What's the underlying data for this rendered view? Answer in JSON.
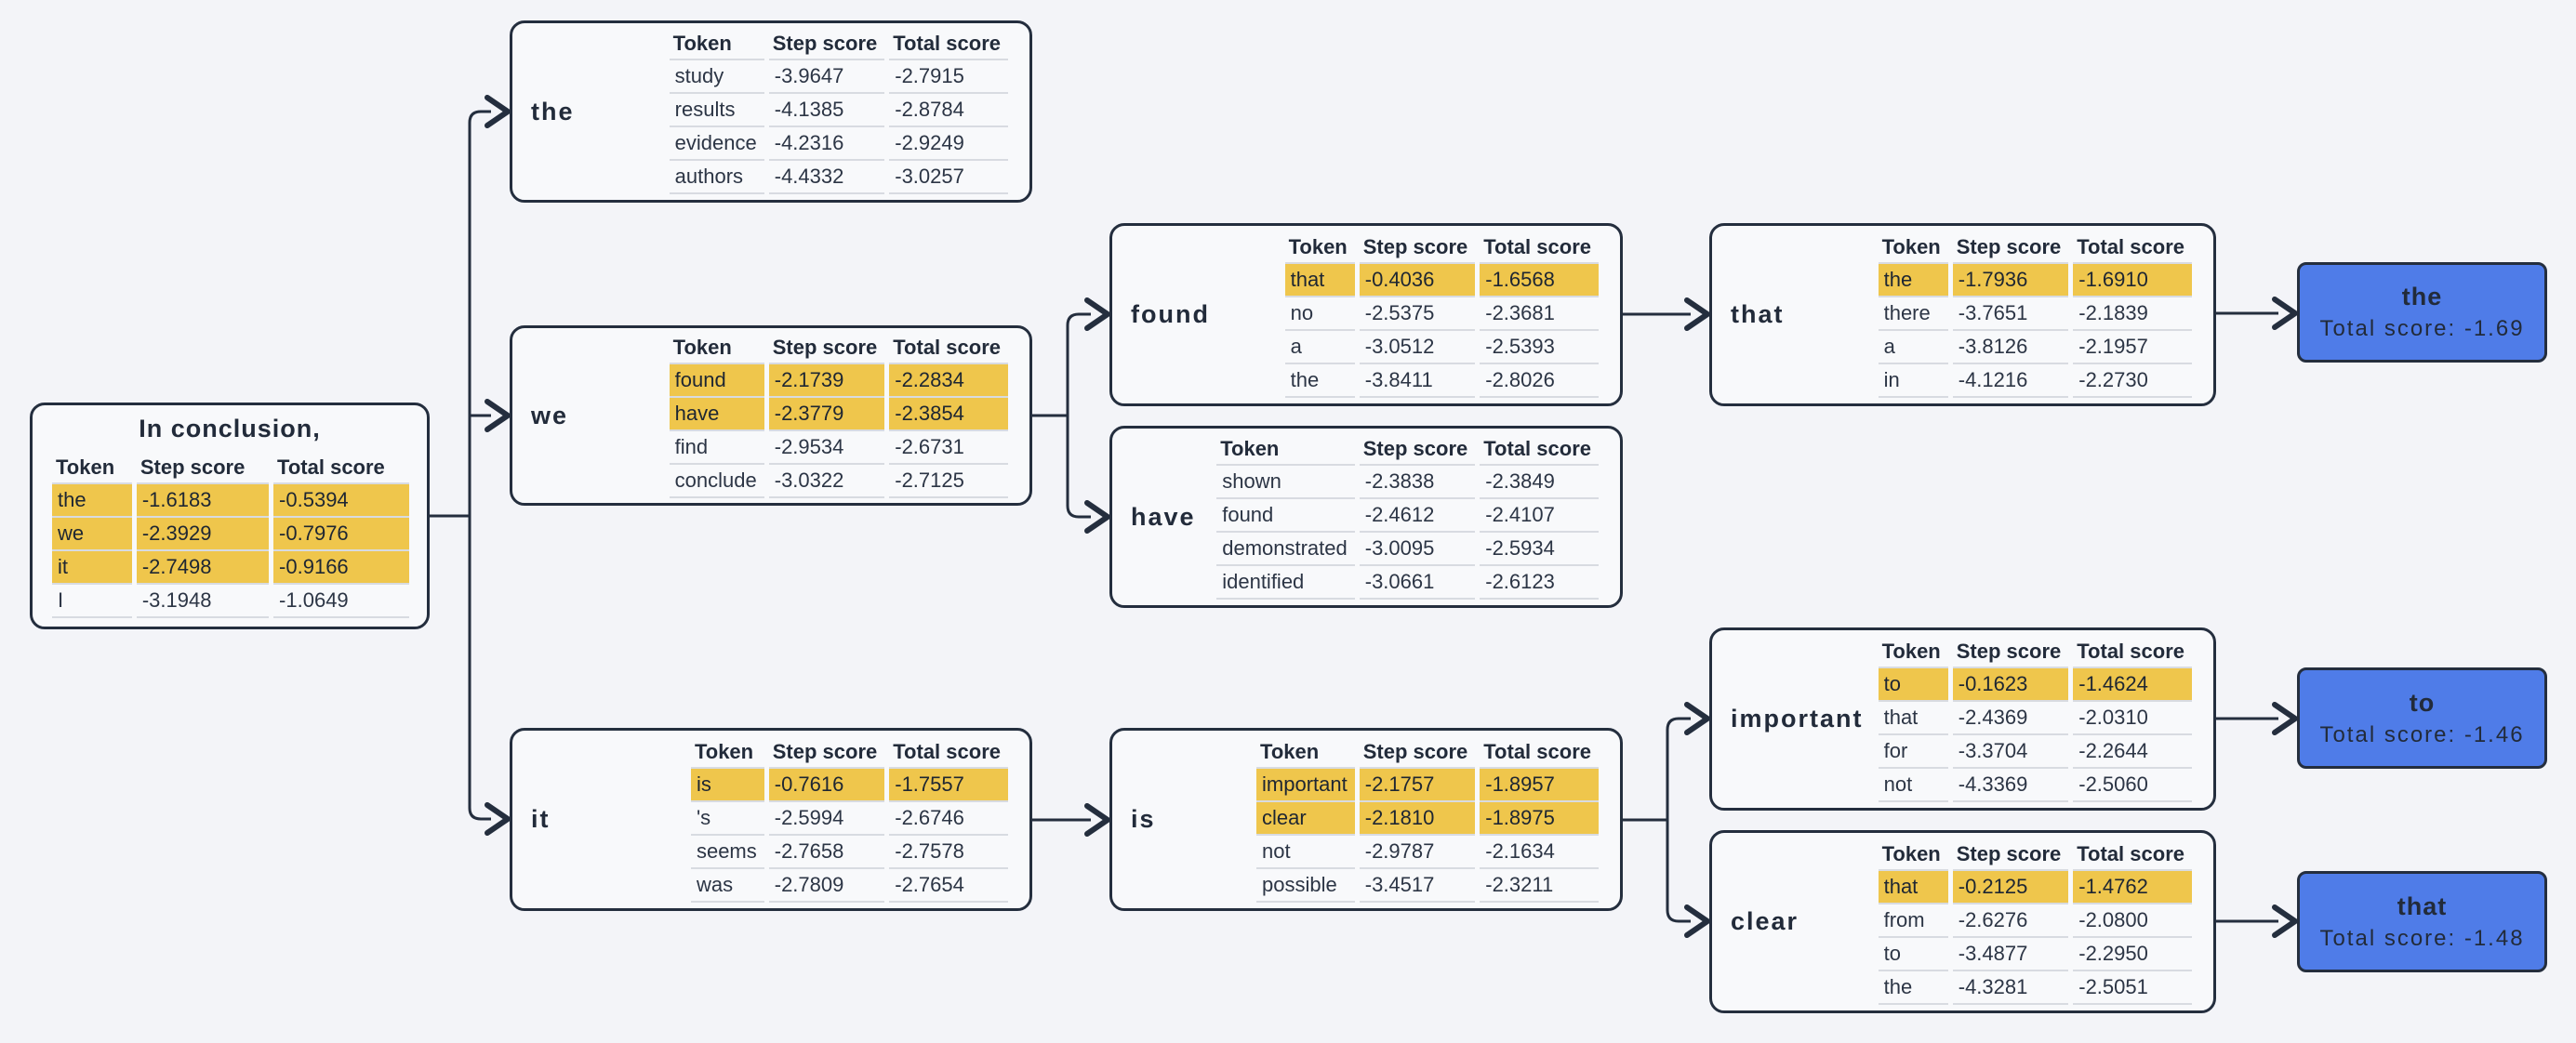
{
  "table_headers": [
    "Token",
    "Step score",
    "Total score"
  ],
  "root": {
    "title": "In conclusion,",
    "rows": [
      {
        "token": "the",
        "step": "-1.6183",
        "total": "-0.5394",
        "highlight": true
      },
      {
        "token": "we",
        "step": "-2.3929",
        "total": "-0.7976",
        "highlight": true
      },
      {
        "token": "it",
        "step": "-2.7498",
        "total": "-0.9166",
        "highlight": true
      },
      {
        "token": "I",
        "step": "-3.1948",
        "total": "-1.0649",
        "highlight": false
      }
    ]
  },
  "nodes": {
    "the": {
      "label": "the",
      "rows": [
        {
          "token": "study",
          "step": "-3.9647",
          "total": "-2.7915",
          "highlight": false
        },
        {
          "token": "results",
          "step": "-4.1385",
          "total": "-2.8784",
          "highlight": false
        },
        {
          "token": "evidence",
          "step": "-4.2316",
          "total": "-2.9249",
          "highlight": false
        },
        {
          "token": "authors",
          "step": "-4.4332",
          "total": "-3.0257",
          "highlight": false
        }
      ]
    },
    "we": {
      "label": "we",
      "rows": [
        {
          "token": "found",
          "step": "-2.1739",
          "total": "-2.2834",
          "highlight": true
        },
        {
          "token": "have",
          "step": "-2.3779",
          "total": "-2.3854",
          "highlight": true
        },
        {
          "token": "find",
          "step": "-2.9534",
          "total": "-2.6731",
          "highlight": false
        },
        {
          "token": "conclude",
          "step": "-3.0322",
          "total": "-2.7125",
          "highlight": false
        }
      ]
    },
    "it": {
      "label": "it",
      "rows": [
        {
          "token": "is",
          "step": "-0.7616",
          "total": "-1.7557",
          "highlight": true
        },
        {
          "token": "'s",
          "step": "-2.5994",
          "total": "-2.6746",
          "highlight": false
        },
        {
          "token": "seems",
          "step": "-2.7658",
          "total": "-2.7578",
          "highlight": false
        },
        {
          "token": "was",
          "step": "-2.7809",
          "total": "-2.7654",
          "highlight": false
        }
      ]
    },
    "found": {
      "label": "found",
      "rows": [
        {
          "token": "that",
          "step": "-0.4036",
          "total": "-1.6568",
          "highlight": true
        },
        {
          "token": "no",
          "step": "-2.5375",
          "total": "-2.3681",
          "highlight": false
        },
        {
          "token": "a",
          "step": "-3.0512",
          "total": "-2.5393",
          "highlight": false
        },
        {
          "token": "the",
          "step": "-3.8411",
          "total": "-2.8026",
          "highlight": false
        }
      ]
    },
    "have": {
      "label": "have",
      "rows": [
        {
          "token": "shown",
          "step": "-2.3838",
          "total": "-2.3849",
          "highlight": false
        },
        {
          "token": "found",
          "step": "-2.4612",
          "total": "-2.4107",
          "highlight": false
        },
        {
          "token": "demonstrated",
          "step": "-3.0095",
          "total": "-2.5934",
          "highlight": false
        },
        {
          "token": "identified",
          "step": "-3.0661",
          "total": "-2.6123",
          "highlight": false
        }
      ]
    },
    "is": {
      "label": "is",
      "rows": [
        {
          "token": "important",
          "step": "-2.1757",
          "total": "-1.8957",
          "highlight": true
        },
        {
          "token": "clear",
          "step": "-2.1810",
          "total": "-1.8975",
          "highlight": true
        },
        {
          "token": "not",
          "step": "-2.9787",
          "total": "-2.1634",
          "highlight": false
        },
        {
          "token": "possible",
          "step": "-3.4517",
          "total": "-2.3211",
          "highlight": false
        }
      ]
    },
    "that": {
      "label": "that",
      "rows": [
        {
          "token": "the",
          "step": "-1.7936",
          "total": "-1.6910",
          "highlight": true
        },
        {
          "token": "there",
          "step": "-3.7651",
          "total": "-2.1839",
          "highlight": false
        },
        {
          "token": "a",
          "step": "-3.8126",
          "total": "-2.1957",
          "highlight": false
        },
        {
          "token": "in",
          "step": "-4.1216",
          "total": "-2.2730",
          "highlight": false
        }
      ]
    },
    "important": {
      "label": "important",
      "rows": [
        {
          "token": "to",
          "step": "-0.1623",
          "total": "-1.4624",
          "highlight": true
        },
        {
          "token": "that",
          "step": "-2.4369",
          "total": "-2.0310",
          "highlight": false
        },
        {
          "token": "for",
          "step": "-3.3704",
          "total": "-2.2644",
          "highlight": false
        },
        {
          "token": "not",
          "step": "-4.3369",
          "total": "-2.5060",
          "highlight": false
        }
      ]
    },
    "clear": {
      "label": "clear",
      "rows": [
        {
          "token": "that",
          "step": "-0.2125",
          "total": "-1.4762",
          "highlight": true
        },
        {
          "token": "from",
          "step": "-2.6276",
          "total": "-2.0800",
          "highlight": false
        },
        {
          "token": "to",
          "step": "-3.4877",
          "total": "-2.2950",
          "highlight": false
        },
        {
          "token": "the",
          "step": "-4.3281",
          "total": "-2.5051",
          "highlight": false
        }
      ]
    }
  },
  "finals": {
    "the": {
      "label": "the",
      "total_label": "Total score: -1.69"
    },
    "to": {
      "label": "to",
      "total_label": "Total score: -1.46"
    },
    "that": {
      "label": "that",
      "total_label": "Total score: -1.48"
    }
  },
  "colors": {
    "page-bg": "#F3F4F8",
    "box-bg": "#F8F9FB",
    "line": "#242E3E",
    "text-dark": "#222B3A",
    "text-mid": "#2C3545",
    "row-line": "#D8DBE1",
    "highlight": "#EFC64C",
    "final-fill": "#4F7CE8"
  }
}
